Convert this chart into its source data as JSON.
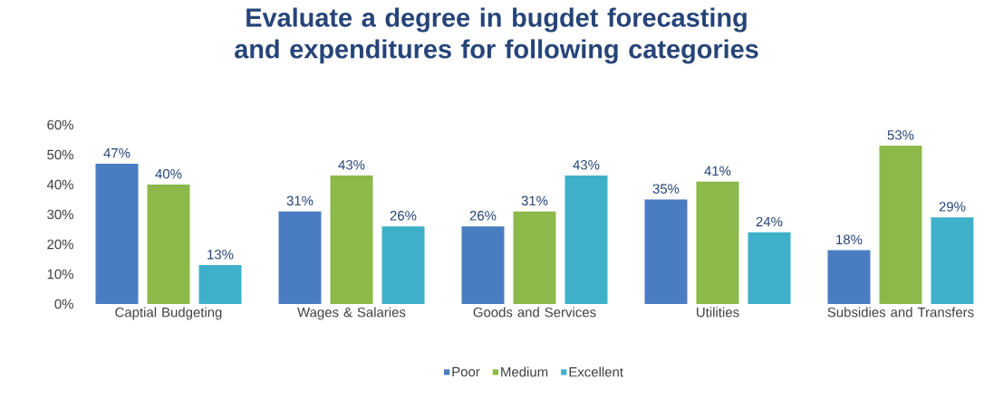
{
  "chart_data": {
    "type": "bar",
    "title": "Evaluate a degree in bugdet forecasting and expenditures for following categories",
    "categories": [
      "Captial Budgeting",
      "Wages & Salaries",
      "Goods and Services",
      "Utilities",
      "Subsidies and Transfers"
    ],
    "series": [
      {
        "name": "Poor",
        "color": "#4a7cc2",
        "values": [
          47,
          31,
          26,
          35,
          18
        ],
        "value_labels": [
          "47%",
          "31%",
          "26%",
          "35%",
          "18%"
        ]
      },
      {
        "name": "Medium",
        "color": "#8db84a",
        "values": [
          40,
          43,
          31,
          41,
          53
        ],
        "value_labels": [
          "40%",
          "43%",
          "31%",
          "41%",
          "53%"
        ]
      },
      {
        "name": "Excellent",
        "color": "#3fb0c9",
        "values": [
          13,
          26,
          43,
          24,
          29
        ],
        "value_labels": [
          "13%",
          "26%",
          "43%",
          "24%",
          "29%"
        ]
      }
    ],
    "ylim": [
      0,
      60
    ],
    "yticks": [
      {
        "value": 0,
        "label": "0%"
      },
      {
        "value": 10,
        "label": "10%"
      },
      {
        "value": 20,
        "label": "20%"
      },
      {
        "value": 30,
        "label": "30%"
      },
      {
        "value": 40,
        "label": "40%"
      },
      {
        "value": 50,
        "label": "50%"
      },
      {
        "value": 60,
        "label": "60%"
      }
    ],
    "legend": "bottom"
  }
}
